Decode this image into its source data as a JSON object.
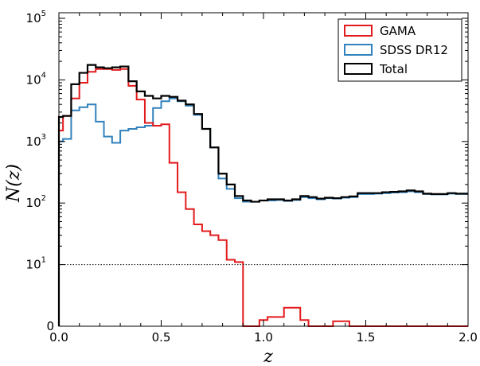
{
  "chart_data": {
    "type": "step-histogram",
    "xlabel": "z",
    "ylabel": "N(z)",
    "xlim": [
      0.0,
      2.0
    ],
    "y_scale": "symlog",
    "y_linthresh": 10,
    "ylim": [
      0,
      100000
    ],
    "x_ticks": [
      {
        "value": 0.0,
        "label": "0.0"
      },
      {
        "value": 0.5,
        "label": "0.5"
      },
      {
        "value": 1.0,
        "label": "1.0"
      },
      {
        "value": 1.5,
        "label": "1.5"
      },
      {
        "value": 2.0,
        "label": "2.0"
      }
    ],
    "y_ticks": [
      {
        "value": 0,
        "base": "0",
        "exp": ""
      },
      {
        "value": 10,
        "base": "10",
        "exp": "1"
      },
      {
        "value": 100,
        "base": "10",
        "exp": "2"
      },
      {
        "value": 1000,
        "base": "10",
        "exp": "3"
      },
      {
        "value": 10000,
        "base": "10",
        "exp": "4"
      },
      {
        "value": 100000,
        "base": "10",
        "exp": "5"
      }
    ],
    "reference_line": {
      "y": 10,
      "style": "dotted"
    },
    "legend": {
      "position": "top-right"
    },
    "series": [
      {
        "name": "GAMA",
        "color": "#e31a1c",
        "bin_edges": [
          0,
          0.02,
          0.06,
          0.1,
          0.14,
          0.18,
          0.22,
          0.26,
          0.3,
          0.34,
          0.38,
          0.42,
          0.46,
          0.5,
          0.54,
          0.58,
          0.62,
          0.66,
          0.7,
          0.74,
          0.78,
          0.82,
          0.86,
          0.9,
          0.94,
          0.98,
          1.02,
          1.06,
          1.1,
          1.14,
          1.18,
          1.22,
          1.26,
          1.3,
          1.34,
          1.38,
          1.42,
          1.46,
          2.0
        ],
        "values": [
          1500,
          2600,
          5000,
          9000,
          13500,
          15000,
          15000,
          14500,
          15000,
          8000,
          4800,
          2000,
          1800,
          1900,
          450,
          150,
          80,
          45,
          35,
          30,
          25,
          12,
          11,
          0,
          0,
          1,
          1.5,
          1.5,
          3,
          3,
          1,
          0,
          0,
          0,
          0.8,
          0.8,
          0,
          0
        ]
      },
      {
        "name": "SDSS DR12",
        "color": "#3182bd",
        "bin_edges": [
          0,
          0.02,
          0.06,
          0.1,
          0.14,
          0.18,
          0.22,
          0.26,
          0.3,
          0.34,
          0.38,
          0.42,
          0.46,
          0.5,
          0.54,
          0.58,
          0.62,
          0.66,
          0.7,
          0.74,
          0.78,
          0.82,
          0.86,
          0.9,
          0.94,
          0.98,
          1.02,
          1.06,
          1.1,
          1.14,
          1.18,
          1.22,
          1.26,
          1.3,
          1.34,
          1.38,
          1.42,
          1.46,
          1.5,
          1.54,
          1.58,
          1.62,
          1.66,
          1.7,
          1.74,
          1.78,
          1.82,
          1.86,
          1.9,
          1.94,
          1.98,
          2.0
        ],
        "values": [
          1000,
          1100,
          3200,
          3600,
          4000,
          2100,
          1200,
          950,
          1500,
          1600,
          1700,
          1800,
          3500,
          4500,
          5000,
          4500,
          3800,
          2700,
          1600,
          800,
          250,
          170,
          120,
          105,
          105,
          110,
          110,
          112,
          108,
          112,
          125,
          120,
          115,
          120,
          118,
          122,
          125,
          140,
          140,
          142,
          145,
          148,
          150,
          155,
          150,
          140,
          138,
          138,
          142,
          140,
          140
        ]
      },
      {
        "name": "Total",
        "color": "#000000",
        "bin_edges": [
          0,
          0.02,
          0.06,
          0.1,
          0.14,
          0.18,
          0.22,
          0.26,
          0.3,
          0.34,
          0.38,
          0.42,
          0.46,
          0.5,
          0.54,
          0.58,
          0.62,
          0.66,
          0.7,
          0.74,
          0.78,
          0.82,
          0.86,
          0.9,
          0.94,
          0.98,
          1.02,
          1.06,
          1.1,
          1.14,
          1.18,
          1.22,
          1.26,
          1.3,
          1.34,
          1.38,
          1.42,
          1.46,
          1.5,
          1.54,
          1.58,
          1.62,
          1.66,
          1.7,
          1.74,
          1.78,
          1.82,
          1.86,
          1.9,
          1.94,
          1.98,
          2.0
        ],
        "values": [
          2500,
          2600,
          8500,
          13000,
          17500,
          16000,
          15500,
          16000,
          16500,
          9500,
          6500,
          5500,
          5000,
          5500,
          5300,
          4600,
          4000,
          2800,
          1600,
          800,
          300,
          200,
          130,
          110,
          105,
          110,
          115,
          115,
          110,
          115,
          130,
          125,
          118,
          122,
          120,
          125,
          128,
          145,
          145,
          145,
          150,
          152,
          155,
          160,
          155,
          142,
          140,
          140,
          145,
          142,
          142
        ]
      }
    ]
  }
}
